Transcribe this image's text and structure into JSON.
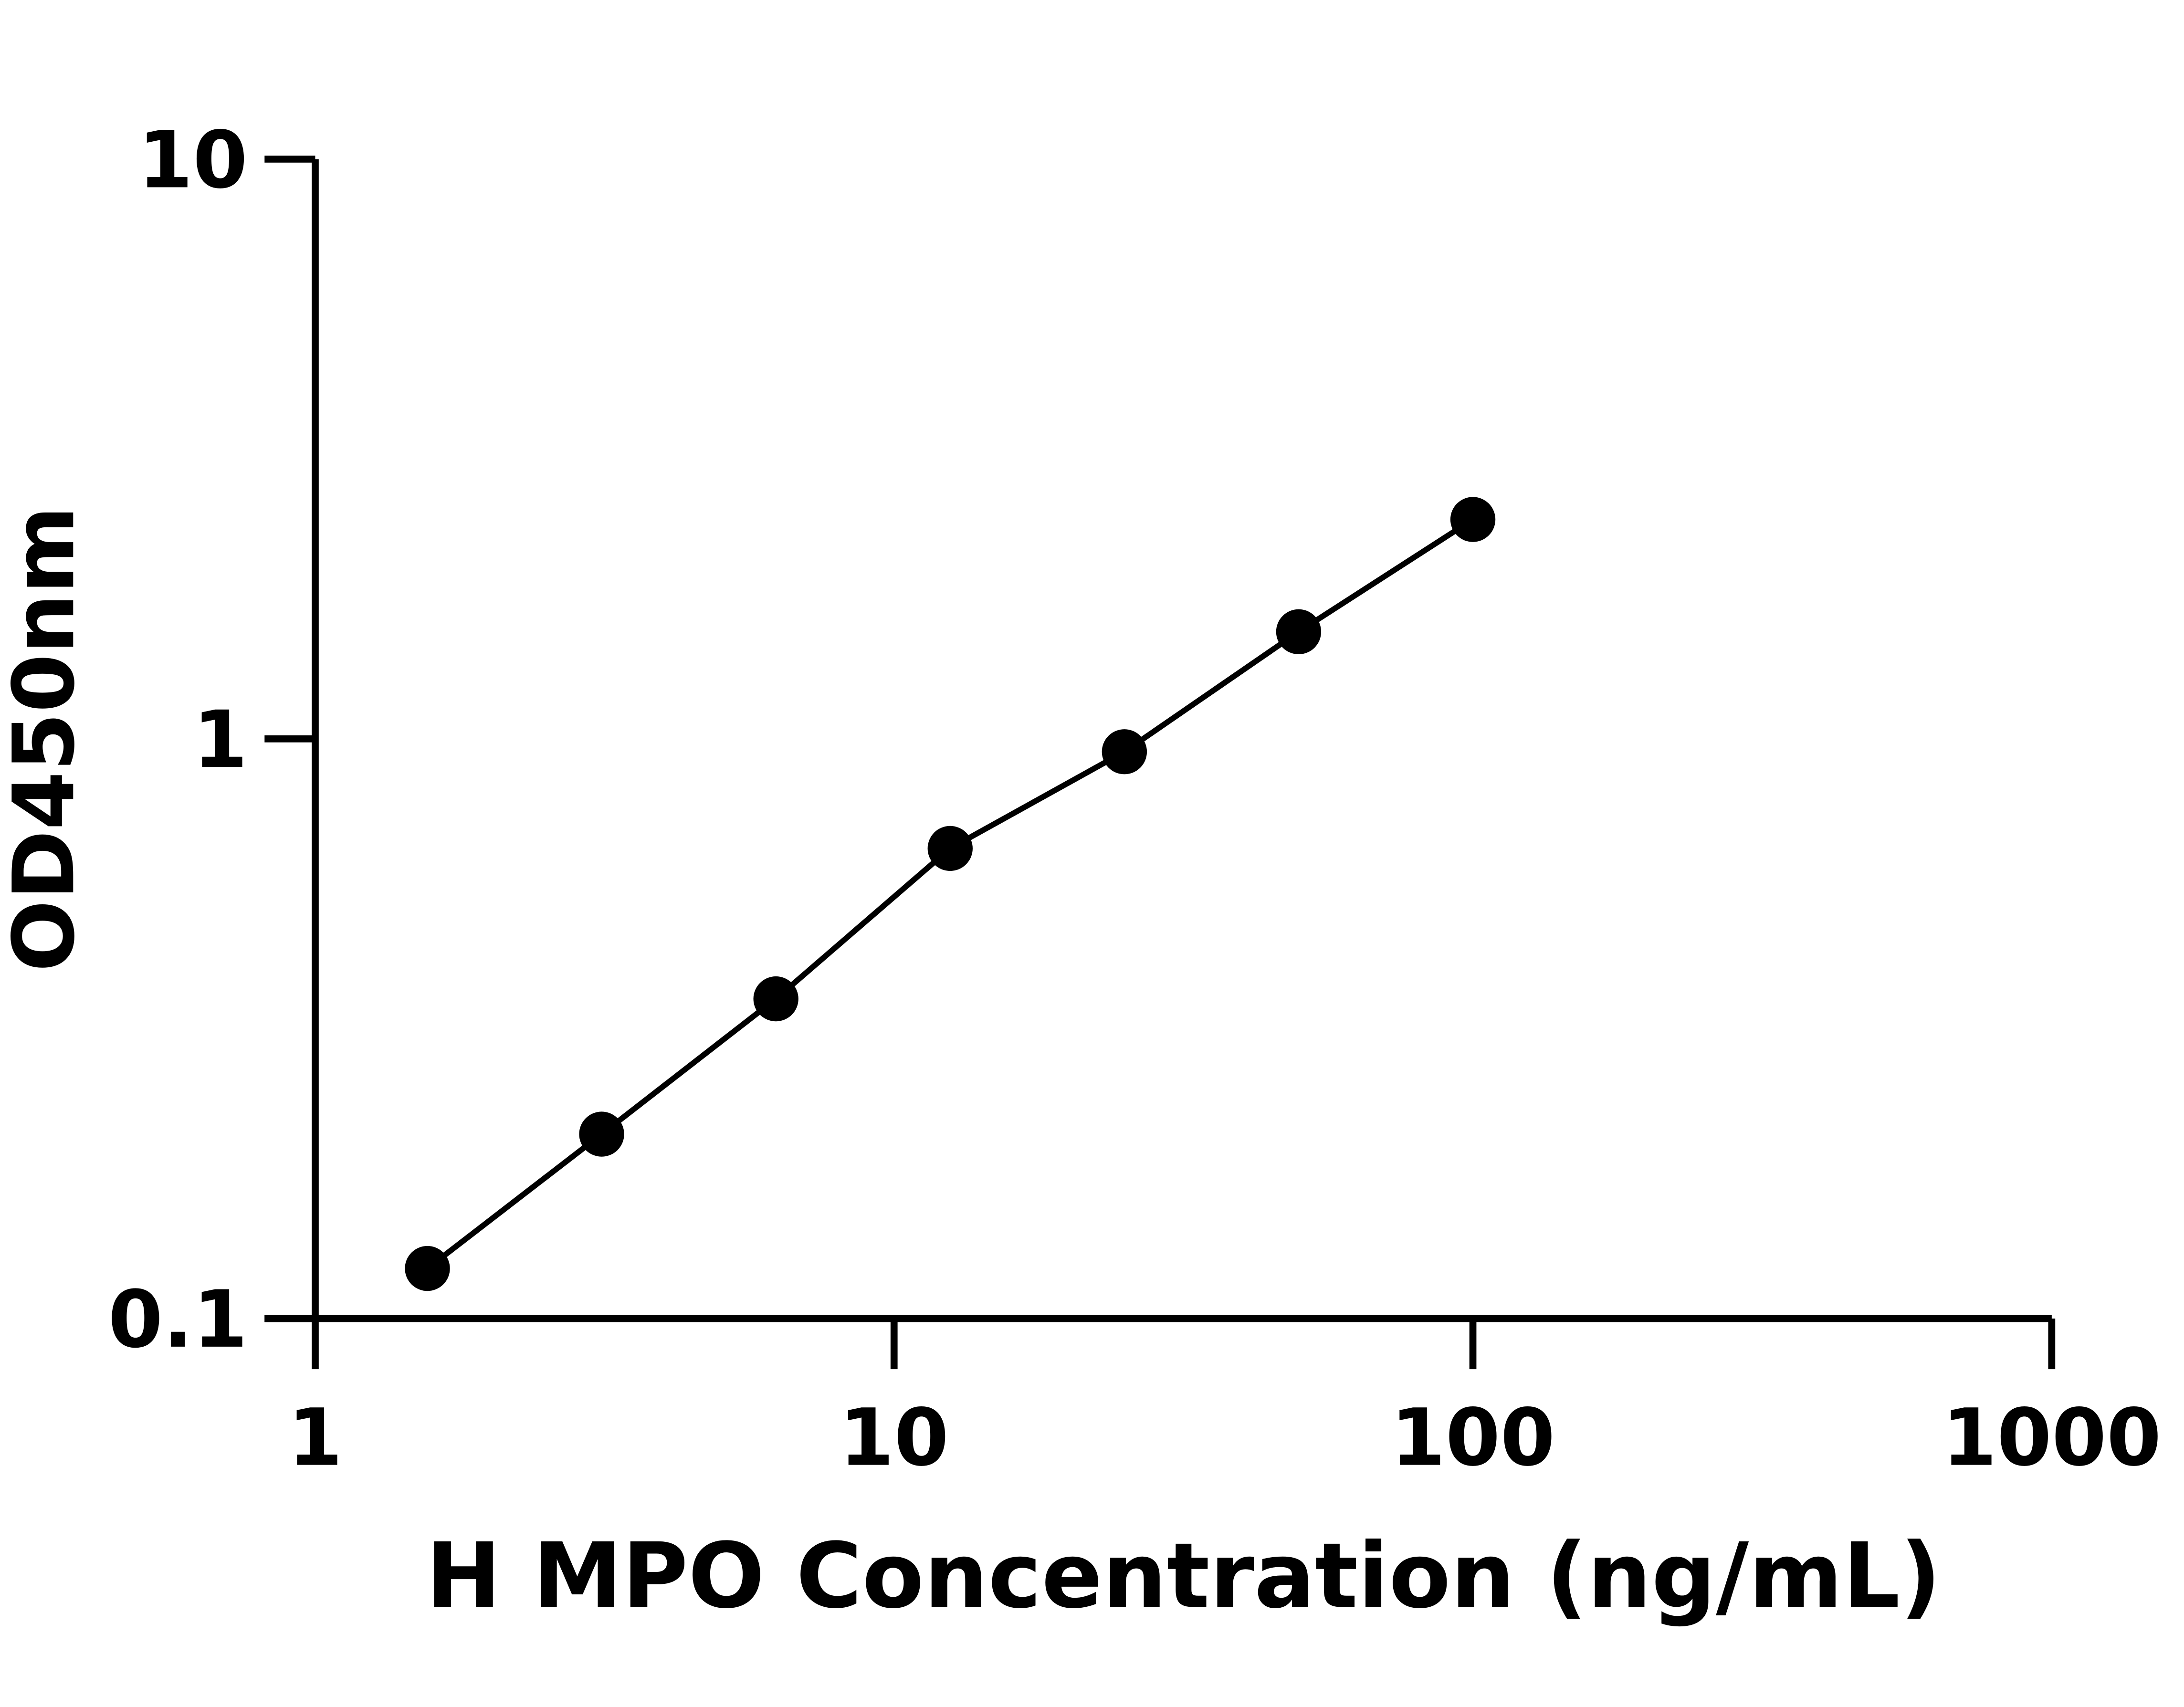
{
  "chart_data": {
    "type": "scatter",
    "title": "",
    "xlabel": "H MPO Concentration (ng/mL)",
    "ylabel": "OD450nm",
    "x_scale": "log",
    "y_scale": "log",
    "xlim": [
      1,
      1000
    ],
    "ylim": [
      0.1,
      10
    ],
    "x_ticks": [
      "1",
      "10",
      "100",
      "1000"
    ],
    "y_ticks": [
      "0.1",
      "1",
      "10"
    ],
    "grid": false,
    "legend": "none",
    "fit_line": true,
    "colors": {
      "points": "#000000",
      "line": "#000000",
      "axes": "#000000"
    },
    "series": [
      {
        "x": [
          1.5625,
          3.125,
          6.25,
          12.5,
          25,
          50,
          100
        ],
        "y": [
          0.122,
          0.208,
          0.356,
          0.647,
          0.95,
          1.53,
          2.39
        ]
      }
    ]
  }
}
